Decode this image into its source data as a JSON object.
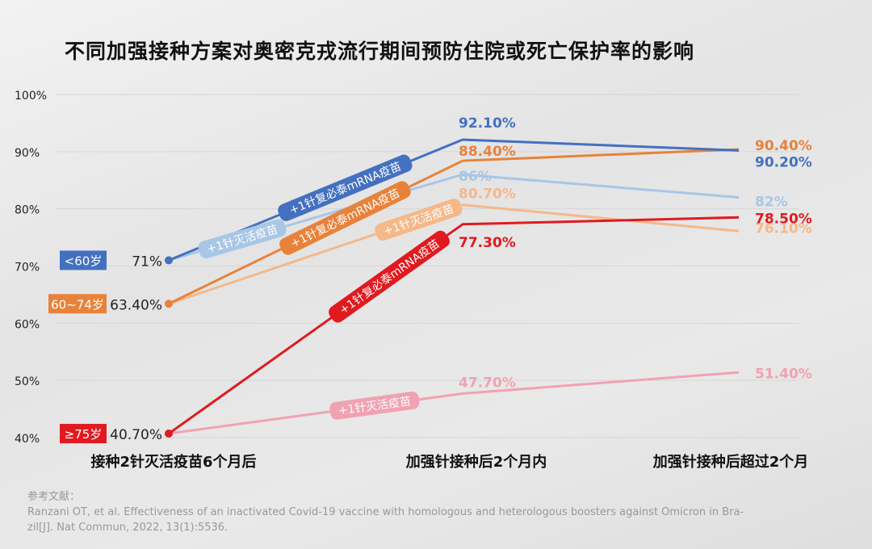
{
  "chart_data": {
    "type": "line",
    "title": "不同加强接种方案对奥密克戎流行期间预防住院或死亡保护率的影响",
    "categories": [
      "接种2针灭活疫苗6个月后",
      "加强针接种后2个月内",
      "加强针接种后超过2个月"
    ],
    "ylim": [
      40,
      100
    ],
    "yticks": [
      40,
      50,
      60,
      70,
      80,
      90,
      100
    ],
    "ytick_labels": [
      "40%",
      "50%",
      "60%",
      "70%",
      "80%",
      "90%",
      "100%"
    ],
    "grid": true,
    "groups": [
      {
        "name": "<60岁",
        "color": "#4470c0",
        "start_label": "71%"
      },
      {
        "name": "60~74岁",
        "color": "#e8823a",
        "start_label": "63.40%"
      },
      {
        "name": "≥75岁",
        "color": "#e01a1f",
        "start_label": "40.70%"
      }
    ],
    "series": [
      {
        "name": "+1针复必泰mRNA疫苗",
        "group": 0,
        "color": "#4470c0",
        "values": [
          71,
          92.1,
          90.2
        ],
        "labels": [
          "",
          "92.10%",
          "90.20%"
        ]
      },
      {
        "name": "+1针灭活疫苗",
        "group": 0,
        "color": "#a8c6e6",
        "values": [
          71,
          86,
          82
        ],
        "labels": [
          "",
          "86%",
          "82%"
        ]
      },
      {
        "name": "+1针复必泰mRNA疫苗",
        "group": 1,
        "color": "#e8823a",
        "values": [
          63.4,
          88.4,
          90.4
        ],
        "labels": [
          "",
          "88.40%",
          "90.40%"
        ]
      },
      {
        "name": "+1针灭活疫苗",
        "group": 1,
        "color": "#f5b889",
        "values": [
          63.4,
          80.7,
          76.1
        ],
        "labels": [
          "",
          "80.70%",
          "76.10%"
        ]
      },
      {
        "name": "+1针复必泰mRNA疫苗",
        "group": 2,
        "color": "#e01a1f",
        "values": [
          40.7,
          77.3,
          78.5
        ],
        "labels": [
          "",
          "77.30%",
          "78.50%"
        ]
      },
      {
        "name": "+1针灭活疫苗",
        "group": 2,
        "color": "#f1a2b2",
        "values": [
          40.7,
          47.7,
          51.4
        ],
        "labels": [
          "",
          "47.70%",
          "51.40%"
        ]
      }
    ]
  },
  "references": {
    "heading": "参考文献：",
    "line1": "Ranzani OT, et al. Effectiveness of an inactivated Covid-19 vaccine with homologous and heterologous boosters against Omicron in Bra-",
    "line2": "zil[J]. Nat Commun, 2022, 13(1):5536."
  }
}
